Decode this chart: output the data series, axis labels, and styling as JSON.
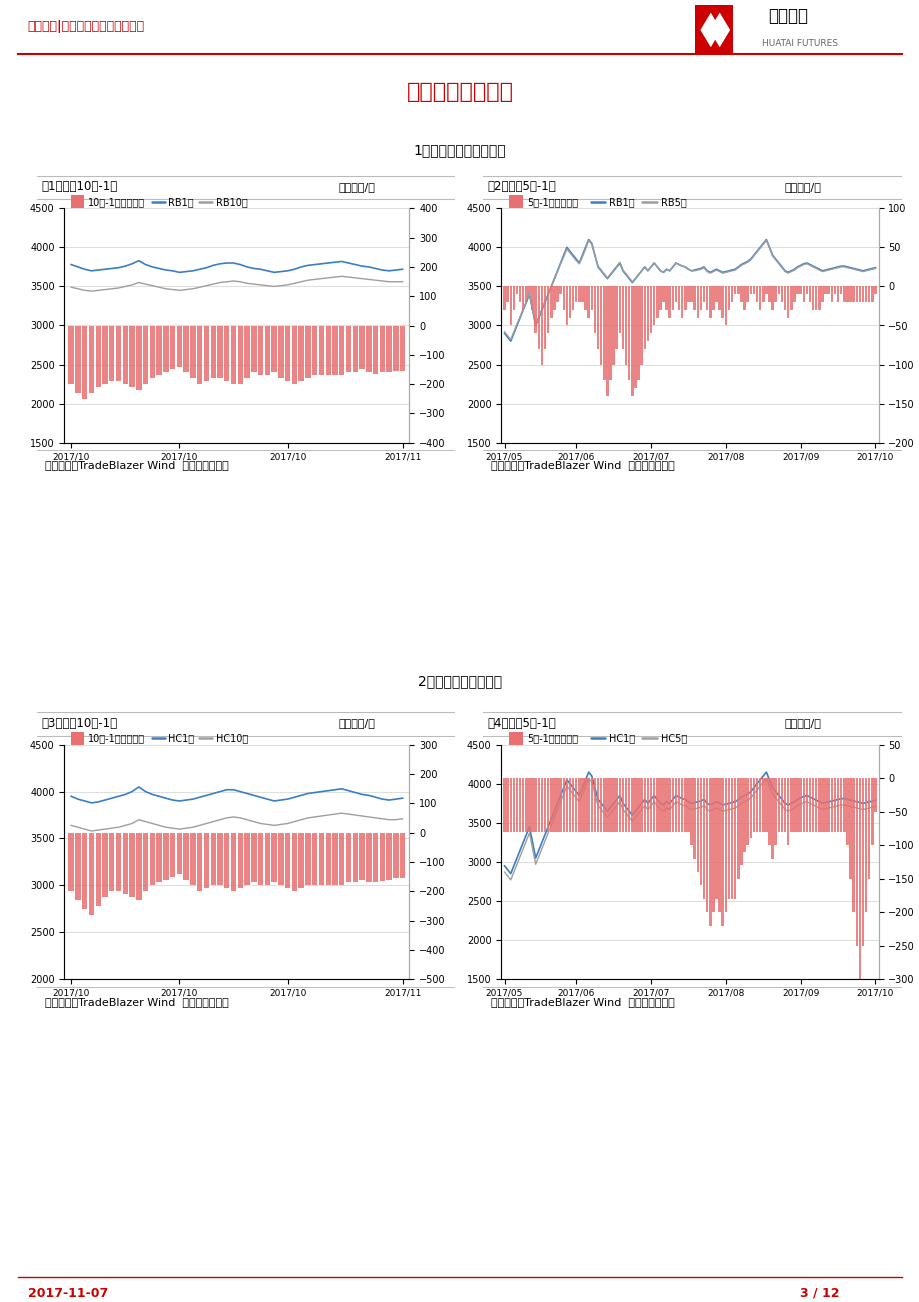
{
  "page_title": "跨期套利机会跟踪",
  "header_left": "华泰期货|黑色产业链期货套利报告",
  "footer_left": "2017-11-07",
  "footer_right": "3 / 12",
  "section1_title": "1、螺纹钢期货跨期套利",
  "section2_title": "2、热轧期货跨期套利",
  "source_text": "数据来源：TradeBlazer Wind  华泰期货研究所",
  "charts": [
    {
      "id": 1,
      "title_left": "图1：螺纹10月-1月",
      "title_right": "单位：元/吨",
      "legend": [
        "10月-1月（右轴）",
        "RB1月",
        "RB10月"
      ],
      "legend_colors": [
        "#e87070",
        "#3b7ec4",
        "#9e9e9e"
      ],
      "legend_styles": [
        "bar",
        "line",
        "line"
      ],
      "ylim_left": [
        1500,
        4500
      ],
      "ylim_right": [
        -400,
        400
      ],
      "yticks_left": [
        1500,
        2000,
        2500,
        3000,
        3500,
        4000,
        4500
      ],
      "yticks_right": [
        -400,
        -300,
        -200,
        -100,
        0,
        100,
        200,
        300,
        400
      ],
      "xtick_labels": [
        "2017/10",
        "2017/10",
        "2017/10",
        "2017/11"
      ],
      "line1_values": [
        3780,
        3750,
        3720,
        3700,
        3710,
        3720,
        3730,
        3740,
        3760,
        3790,
        3830,
        3780,
        3750,
        3730,
        3710,
        3700,
        3680,
        3690,
        3700,
        3720,
        3740,
        3770,
        3790,
        3800,
        3800,
        3780,
        3750,
        3730,
        3720,
        3700,
        3680,
        3690,
        3700,
        3720,
        3750,
        3770,
        3780,
        3790,
        3800,
        3810,
        3820,
        3800,
        3780,
        3760,
        3750,
        3730,
        3710,
        3700,
        3710,
        3720
      ],
      "line2_values": [
        3490,
        3470,
        3450,
        3440,
        3450,
        3460,
        3470,
        3480,
        3500,
        3520,
        3550,
        3530,
        3510,
        3490,
        3470,
        3460,
        3450,
        3460,
        3470,
        3490,
        3510,
        3530,
        3550,
        3560,
        3570,
        3560,
        3540,
        3530,
        3520,
        3510,
        3500,
        3510,
        3520,
        3540,
        3560,
        3580,
        3590,
        3600,
        3610,
        3620,
        3630,
        3620,
        3610,
        3600,
        3590,
        3580,
        3570,
        3560,
        3560,
        3560
      ],
      "spread_values": [
        -200,
        -230,
        -250,
        -230,
        -210,
        -200,
        -190,
        -190,
        -200,
        -210,
        -220,
        -200,
        -180,
        -170,
        -160,
        -150,
        -140,
        -160,
        -180,
        -200,
        -190,
        -180,
        -180,
        -190,
        -200,
        -200,
        -180,
        -160,
        -170,
        -170,
        -160,
        -180,
        -190,
        -200,
        -190,
        -180,
        -170,
        -170,
        -170,
        -170,
        -170,
        -160,
        -160,
        -150,
        -160,
        -165,
        -160,
        -160,
        -155,
        -155
      ],
      "n_points": 50
    },
    {
      "id": 2,
      "title_left": "图2：螺纹5月-1月",
      "title_right": "单位：元/吨",
      "legend": [
        "5月-1月（右轴）",
        "RB1月",
        "RB5月"
      ],
      "legend_colors": [
        "#e87070",
        "#3b7ec4",
        "#9e9e9e"
      ],
      "legend_styles": [
        "bar",
        "line",
        "line"
      ],
      "ylim_left": [
        1500,
        4500
      ],
      "ylim_right": [
        -200,
        100
      ],
      "yticks_left": [
        1500,
        2000,
        2500,
        3000,
        3500,
        4000,
        4500
      ],
      "yticks_right": [
        -200,
        -150,
        -100,
        -50,
        0,
        50,
        100
      ],
      "xtick_labels": [
        "2017/05",
        "2017/06",
        "2017/07",
        "2017/08",
        "2017/09",
        "2017/10"
      ],
      "line1_values": [
        2900,
        2850,
        2800,
        2900,
        3000,
        3100,
        3200,
        3300,
        3400,
        3200,
        3000,
        3100,
        3200,
        3300,
        3400,
        3500,
        3600,
        3700,
        3800,
        3900,
        4000,
        3950,
        3900,
        3850,
        3800,
        3900,
        4000,
        4100,
        4050,
        3900,
        3750,
        3700,
        3650,
        3600,
        3650,
        3700,
        3750,
        3800,
        3700,
        3650,
        3600,
        3550,
        3600,
        3650,
        3700,
        3750,
        3700,
        3750,
        3800,
        3750,
        3700,
        3680,
        3720,
        3700,
        3750,
        3800,
        3780,
        3760,
        3750,
        3720,
        3700,
        3710,
        3720,
        3730,
        3750,
        3700,
        3680,
        3700,
        3720,
        3700,
        3680,
        3690,
        3700,
        3710,
        3720,
        3750,
        3780,
        3800,
        3820,
        3850,
        3900,
        3950,
        4000,
        4050,
        4100,
        4000,
        3900,
        3850,
        3800,
        3750,
        3700,
        3680,
        3700,
        3720,
        3750,
        3770,
        3790,
        3800,
        3780,
        3760,
        3740,
        3720,
        3700,
        3710,
        3720,
        3730,
        3740,
        3750,
        3760,
        3760,
        3750,
        3740,
        3730,
        3720,
        3710,
        3700,
        3710,
        3720,
        3730,
        3740
      ],
      "line2_values": [
        2920,
        2870,
        2820,
        2920,
        3020,
        3110,
        3210,
        3310,
        3410,
        3210,
        3010,
        3110,
        3210,
        3310,
        3400,
        3490,
        3590,
        3690,
        3790,
        3880,
        3980,
        3930,
        3880,
        3830,
        3790,
        3880,
        3980,
        4090,
        4040,
        3890,
        3760,
        3710,
        3660,
        3610,
        3660,
        3710,
        3760,
        3810,
        3710,
        3660,
        3610,
        3560,
        3600,
        3650,
        3700,
        3750,
        3700,
        3750,
        3800,
        3750,
        3700,
        3680,
        3720,
        3700,
        3750,
        3800,
        3780,
        3760,
        3750,
        3720,
        3700,
        3700,
        3710,
        3720,
        3740,
        3690,
        3670,
        3690,
        3710,
        3690,
        3670,
        3680,
        3690,
        3700,
        3710,
        3740,
        3770,
        3790,
        3810,
        3840,
        3890,
        3940,
        3990,
        4040,
        4090,
        3990,
        3890,
        3840,
        3790,
        3740,
        3690,
        3670,
        3690,
        3710,
        3740,
        3760,
        3780,
        3790,
        3770,
        3750,
        3730,
        3710,
        3690,
        3700,
        3710,
        3720,
        3730,
        3740,
        3750,
        3750,
        3740,
        3730,
        3720,
        3710,
        3700,
        3690,
        3700,
        3710,
        3720,
        3730
      ],
      "spread_values": [
        -30,
        -20,
        -50,
        -30,
        -10,
        -20,
        -30,
        -20,
        -10,
        -30,
        -60,
        -80,
        -100,
        -80,
        -60,
        -40,
        -30,
        -20,
        -10,
        -30,
        -50,
        -40,
        -30,
        -20,
        -20,
        -20,
        -30,
        -40,
        -30,
        -60,
        -80,
        -100,
        -120,
        -140,
        -120,
        -100,
        -80,
        -60,
        -80,
        -100,
        -120,
        -140,
        -130,
        -120,
        -100,
        -80,
        -70,
        -60,
        -50,
        -40,
        -30,
        -20,
        -30,
        -40,
        -30,
        -20,
        -30,
        -40,
        -30,
        -20,
        -20,
        -30,
        -40,
        -30,
        -20,
        -30,
        -40,
        -30,
        -20,
        -30,
        -40,
        -50,
        -30,
        -20,
        -10,
        -10,
        -20,
        -30,
        -20,
        -10,
        -10,
        -20,
        -30,
        -20,
        -10,
        -20,
        -30,
        -20,
        -10,
        -20,
        -30,
        -40,
        -30,
        -20,
        -10,
        -10,
        -20,
        -10,
        -20,
        -30,
        -30,
        -30,
        -20,
        -10,
        -10,
        -20,
        -10,
        -20,
        -10,
        -20,
        -20,
        -20,
        -20,
        -20,
        -20,
        -20,
        -20,
        -20,
        -20,
        -10
      ],
      "n_points": 120
    },
    {
      "id": 3,
      "title_left": "图3：热轧10月-1月",
      "title_right": "单位：元/吨",
      "legend": [
        "10月-1月（右轴）",
        "HC1月",
        "HC10月"
      ],
      "legend_colors": [
        "#e87070",
        "#3b7ec4",
        "#9e9e9e"
      ],
      "legend_styles": [
        "bar",
        "line",
        "line"
      ],
      "ylim_left": [
        2000,
        4500
      ],
      "ylim_right": [
        -500,
        300
      ],
      "yticks_left": [
        2000,
        2500,
        3000,
        3500,
        4000,
        4500
      ],
      "yticks_right": [
        -500,
        -400,
        -300,
        -200,
        -100,
        0,
        100,
        200,
        300
      ],
      "xtick_labels": [
        "2017/10",
        "2017/10",
        "2017/10",
        "2017/11"
      ],
      "line1_values": [
        3950,
        3920,
        3900,
        3880,
        3890,
        3910,
        3930,
        3950,
        3970,
        4000,
        4050,
        4000,
        3970,
        3950,
        3930,
        3910,
        3900,
        3910,
        3920,
        3940,
        3960,
        3980,
        4000,
        4020,
        4020,
        4000,
        3980,
        3960,
        3940,
        3920,
        3900,
        3910,
        3920,
        3940,
        3960,
        3980,
        3990,
        4000,
        4010,
        4020,
        4030,
        4010,
        3990,
        3970,
        3960,
        3940,
        3920,
        3910,
        3920,
        3930
      ],
      "line2_values": [
        3640,
        3620,
        3600,
        3580,
        3590,
        3600,
        3610,
        3620,
        3640,
        3660,
        3700,
        3680,
        3660,
        3640,
        3620,
        3610,
        3600,
        3610,
        3620,
        3640,
        3660,
        3680,
        3700,
        3720,
        3730,
        3720,
        3700,
        3680,
        3660,
        3650,
        3640,
        3650,
        3660,
        3680,
        3700,
        3720,
        3730,
        3740,
        3750,
        3760,
        3770,
        3760,
        3750,
        3740,
        3730,
        3720,
        3710,
        3700,
        3700,
        3710
      ],
      "spread_values": [
        -200,
        -230,
        -260,
        -280,
        -250,
        -220,
        -200,
        -200,
        -210,
        -220,
        -230,
        -200,
        -180,
        -170,
        -160,
        -150,
        -140,
        -160,
        -180,
        -200,
        -190,
        -180,
        -180,
        -190,
        -200,
        -190,
        -180,
        -170,
        -180,
        -180,
        -170,
        -180,
        -190,
        -200,
        -190,
        -180,
        -180,
        -180,
        -180,
        -180,
        -180,
        -170,
        -170,
        -160,
        -170,
        -170,
        -165,
        -160,
        -155,
        -155
      ],
      "n_points": 50
    },
    {
      "id": 4,
      "title_left": "图4：热轧5月-1月",
      "title_right": "单位：元/吨",
      "legend": [
        "5月-1月（右轴）",
        "HC1月",
        "HC5月"
      ],
      "legend_colors": [
        "#e87070",
        "#3b7ec4",
        "#9e9e9e"
      ],
      "legend_styles": [
        "bar",
        "line",
        "line"
      ],
      "ylim_left": [
        1500,
        4500
      ],
      "ylim_right": [
        -300,
        50
      ],
      "yticks_left": [
        1500,
        2000,
        2500,
        3000,
        3500,
        4000,
        4500
      ],
      "yticks_right": [
        -300,
        -250,
        -200,
        -150,
        -100,
        -50,
        0,
        50
      ],
      "xtick_labels": [
        "2017/05",
        "2017/06",
        "2017/07",
        "2017/08",
        "2017/09",
        "2017/10"
      ],
      "line1_values": [
        2950,
        2900,
        2850,
        2950,
        3050,
        3150,
        3250,
        3350,
        3450,
        3250,
        3050,
        3150,
        3250,
        3350,
        3450,
        3550,
        3650,
        3750,
        3850,
        3950,
        4050,
        4000,
        3950,
        3900,
        3850,
        3950,
        4050,
        4150,
        4100,
        3950,
        3800,
        3750,
        3700,
        3650,
        3700,
        3750,
        3800,
        3850,
        3750,
        3700,
        3650,
        3600,
        3650,
        3700,
        3750,
        3800,
        3750,
        3800,
        3850,
        3800,
        3750,
        3730,
        3770,
        3750,
        3800,
        3850,
        3830,
        3810,
        3800,
        3770,
        3750,
        3760,
        3770,
        3780,
        3800,
        3750,
        3730,
        3750,
        3770,
        3750,
        3730,
        3740,
        3750,
        3760,
        3770,
        3800,
        3830,
        3850,
        3870,
        3900,
        3950,
        4000,
        4050,
        4100,
        4150,
        4050,
        3950,
        3900,
        3850,
        3800,
        3750,
        3730,
        3750,
        3770,
        3800,
        3820,
        3840,
        3850,
        3830,
        3810,
        3790,
        3770,
        3750,
        3760,
        3770,
        3780,
        3790,
        3800,
        3810,
        3810,
        3800,
        3790,
        3780,
        3770,
        3760,
        3750,
        3760,
        3770,
        3780,
        3790
      ],
      "line2_values": [
        2870,
        2820,
        2770,
        2870,
        2970,
        3070,
        3170,
        3270,
        3370,
        3170,
        2970,
        3070,
        3170,
        3270,
        3370,
        3470,
        3570,
        3670,
        3770,
        3870,
        3970,
        3920,
        3870,
        3820,
        3770,
        3870,
        3970,
        4070,
        4020,
        3870,
        3720,
        3670,
        3620,
        3570,
        3620,
        3670,
        3720,
        3770,
        3670,
        3620,
        3570,
        3520,
        3570,
        3620,
        3670,
        3720,
        3670,
        3720,
        3770,
        3720,
        3670,
        3650,
        3690,
        3670,
        3720,
        3770,
        3750,
        3730,
        3720,
        3690,
        3670,
        3680,
        3690,
        3700,
        3720,
        3670,
        3650,
        3670,
        3690,
        3670,
        3650,
        3660,
        3670,
        3680,
        3690,
        3720,
        3750,
        3770,
        3790,
        3820,
        3870,
        3920,
        3970,
        4020,
        4070,
        3970,
        3870,
        3820,
        3770,
        3720,
        3670,
        3650,
        3670,
        3690,
        3720,
        3740,
        3760,
        3770,
        3750,
        3730,
        3710,
        3690,
        3670,
        3680,
        3690,
        3700,
        3710,
        3720,
        3730,
        3730,
        3720,
        3710,
        3700,
        3690,
        3680,
        3670,
        3680,
        3690,
        3700,
        3710
      ],
      "spread_values": [
        -80,
        -80,
        -80,
        -80,
        -80,
        -80,
        -80,
        -80,
        -80,
        -80,
        -80,
        -80,
        -80,
        -80,
        -80,
        -80,
        -80,
        -80,
        -80,
        -80,
        -80,
        -80,
        -80,
        -80,
        -80,
        -80,
        -80,
        -80,
        -80,
        -80,
        -80,
        -80,
        -80,
        -80,
        -80,
        -80,
        -80,
        -80,
        -80,
        -80,
        -80,
        -80,
        -80,
        -80,
        -80,
        -80,
        -80,
        -80,
        -80,
        -80,
        -80,
        -80,
        -80,
        -80,
        -80,
        -80,
        -80,
        -80,
        -80,
        -80,
        -100,
        -120,
        -140,
        -160,
        -180,
        -200,
        -220,
        -200,
        -180,
        -200,
        -220,
        -200,
        -180,
        -180,
        -180,
        -150,
        -130,
        -110,
        -100,
        -90,
        -80,
        -80,
        -80,
        -80,
        -80,
        -100,
        -120,
        -100,
        -80,
        -80,
        -80,
        -100,
        -80,
        -80,
        -80,
        -80,
        -80,
        -80,
        -80,
        -80,
        -80,
        -80,
        -80,
        -80,
        -80,
        -80,
        -80,
        -80,
        -80,
        -80,
        -100,
        -150,
        -200,
        -250,
        -300,
        -250,
        -200,
        -150,
        -100,
        -50
      ],
      "n_points": 120
    }
  ]
}
